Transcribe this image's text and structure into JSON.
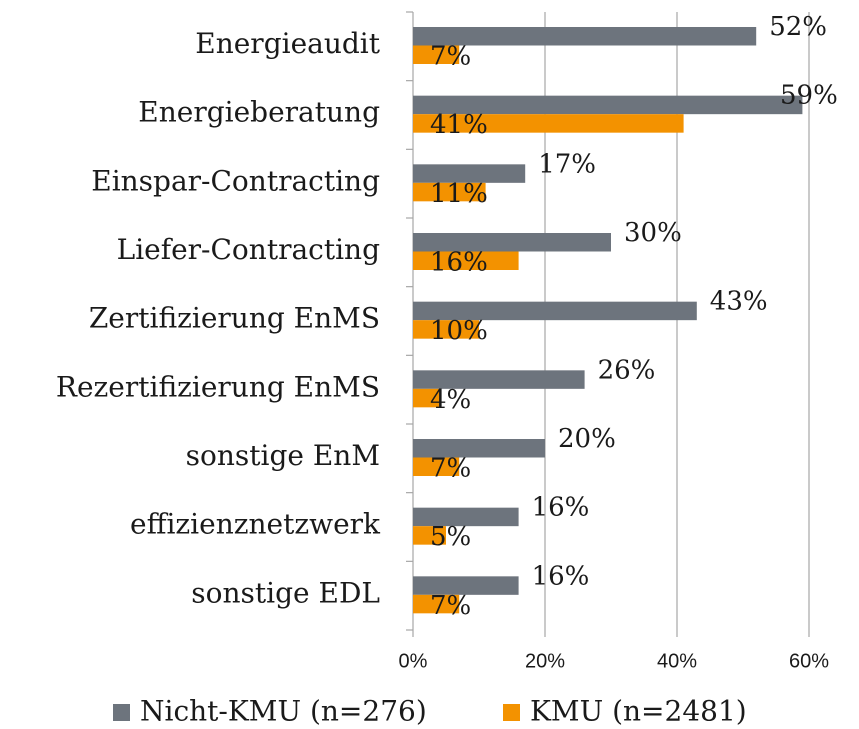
{
  "chart_data": {
    "type": "bar",
    "orientation": "horizontal",
    "categories": [
      "Energieaudit",
      "Energieberatung",
      "Einspar-Contracting",
      "Liefer-Contracting",
      "Zertifizierung EnMS",
      "Rezertifizierung EnMS",
      "sonstige EnM",
      "effizienznetzwerk",
      "sonstige EDL"
    ],
    "series": [
      {
        "name": "Nicht-KMU (n=276)",
        "color": "#6d747d",
        "values": [
          52,
          59,
          17,
          30,
          43,
          26,
          20,
          16,
          16
        ],
        "value_labels": [
          "52%",
          "59%",
          "17%",
          "30%",
          "43%",
          "26%",
          "20%",
          "16%",
          "16%"
        ]
      },
      {
        "name": "KMU (n=2481)",
        "color": "#f39200",
        "values": [
          7,
          41,
          11,
          16,
          10,
          4,
          7,
          5,
          7
        ],
        "value_labels": [
          "7%",
          "41%",
          "11%",
          "16%",
          "10%",
          "4%",
          "7%",
          "5%",
          "7%"
        ]
      }
    ],
    "xlim": [
      0,
      60
    ],
    "xticks": [
      {
        "value": 0,
        "label": "0%"
      },
      {
        "value": 20,
        "label": "20%"
      },
      {
        "value": 40,
        "label": "40%"
      },
      {
        "value": 60,
        "label": "60%"
      }
    ],
    "grid": true,
    "legend": "bottom"
  }
}
